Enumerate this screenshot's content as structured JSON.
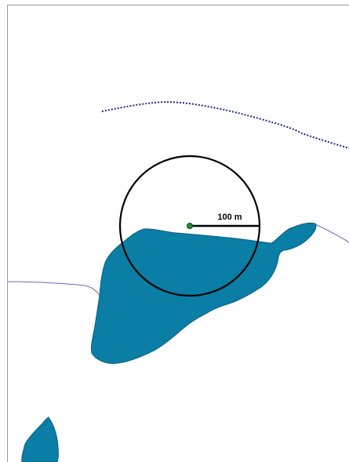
{
  "map": {
    "background_color": "#ffffff",
    "frame_color": "#9a9a9a",
    "water_color": "#0a7ea4",
    "water_outline_color": "#0a5f80",
    "stream_color": "#6a6ab8",
    "trail_color": "#1a2a8a",
    "buffer_circle_color": "#000000",
    "point_color": "#1f8a2a",
    "point_outline_color": "#0d4a12",
    "features": [
      "dotted-trail",
      "stream-line",
      "lake",
      "small-lake",
      "buffer-circle",
      "center-point",
      "radius-line"
    ]
  },
  "scale": {
    "label": "100 m"
  }
}
